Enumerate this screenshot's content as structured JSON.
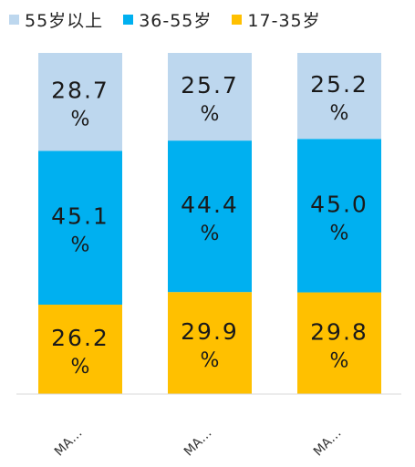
{
  "chart_data": {
    "type": "bar",
    "stacked": true,
    "percent": true,
    "categories": [
      "MA…",
      "MA…",
      "MA…"
    ],
    "series": [
      {
        "name": "17-35岁",
        "color": "#FFC000",
        "values": [
          26.2,
          29.9,
          29.8
        ],
        "labels": [
          "26.2",
          "29.9",
          "29.8"
        ]
      },
      {
        "name": "36-55岁",
        "color": "#00B0F0",
        "values": [
          45.1,
          44.4,
          45.0
        ],
        "labels": [
          "45.1",
          "44.4",
          "45.0"
        ]
      },
      {
        "name": "55岁以上",
        "color": "#BDD7EE",
        "values": [
          28.7,
          25.7,
          25.2
        ],
        "labels": [
          "28.7",
          "25.7",
          "25.2"
        ]
      }
    ],
    "value_unit": "%",
    "legend_order": [
      "55岁以上",
      "36-55岁",
      "17-35岁"
    ],
    "legend_position": "top",
    "ylim": [
      0,
      100
    ],
    "grid": false
  }
}
